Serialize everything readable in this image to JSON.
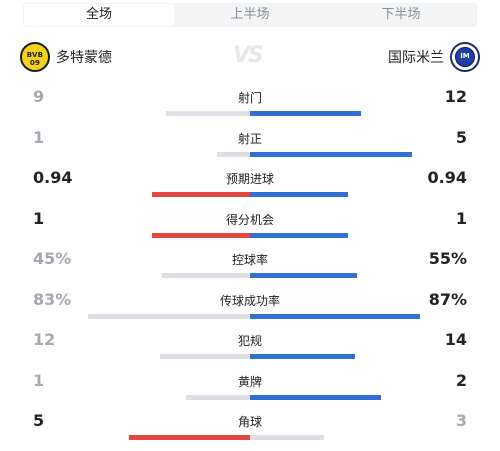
{
  "tabs": [
    {
      "label": "全场",
      "active": true
    },
    {
      "label": "上半场",
      "active": false
    },
    {
      "label": "下半场",
      "active": false
    }
  ],
  "home_team": {
    "name": "多特蒙德",
    "logo_icon": "borussia-dortmund-logo",
    "logo_text": [
      "BVB",
      "09"
    ]
  },
  "away_team": {
    "name": "国际米兰",
    "logo_icon": "inter-milan-logo",
    "logo_text": "IM"
  },
  "vs_label": "VS",
  "colors": {
    "home_lead": "#e5473c",
    "away_lead": "#2f6fd6",
    "trail": "#dcdfe4",
    "dim_text": "#a4a8b0"
  },
  "stats": [
    {
      "label": "射门",
      "home": "9",
      "away": "12",
      "home_share": 0.43,
      "away_share": 0.57,
      "leader": "away"
    },
    {
      "label": "射正",
      "home": "1",
      "away": "5",
      "home_share": 0.17,
      "away_share": 0.83,
      "leader": "away"
    },
    {
      "label": "预期进球",
      "home": "0.94",
      "away": "0.94",
      "home_share": 0.5,
      "away_share": 0.5,
      "leader": "tie"
    },
    {
      "label": "得分机会",
      "home": "1",
      "away": "1",
      "home_share": 0.5,
      "away_share": 0.5,
      "leader": "tie"
    },
    {
      "label": "控球率",
      "home": "45%",
      "away": "55%",
      "home_share": 0.45,
      "away_share": 0.55,
      "leader": "away"
    },
    {
      "label": "传球成功率",
      "home": "83%",
      "away": "87%",
      "home_share": 0.83,
      "away_share": 0.87,
      "leader": "away"
    },
    {
      "label": "犯规",
      "home": "12",
      "away": "14",
      "home_share": 0.46,
      "away_share": 0.54,
      "leader": "away"
    },
    {
      "label": "黄牌",
      "home": "1",
      "away": "2",
      "home_share": 0.33,
      "away_share": 0.67,
      "leader": "away"
    },
    {
      "label": "角球",
      "home": "5",
      "away": "3",
      "home_share": 0.62,
      "away_share": 0.38,
      "leader": "home"
    }
  ]
}
